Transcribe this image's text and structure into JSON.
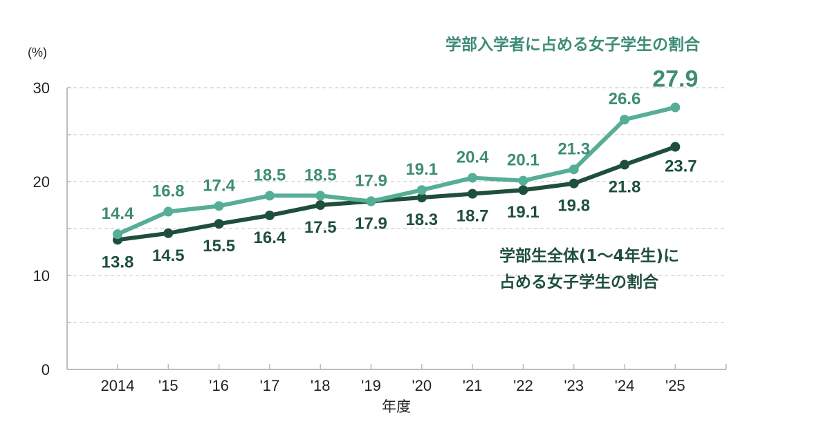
{
  "chart_data": {
    "type": "line",
    "title": "",
    "xlabel": "年度",
    "ylabel": "(%)",
    "ylim": [
      0,
      30
    ],
    "yticks": [
      0,
      10,
      20,
      30
    ],
    "grid": true,
    "categories": [
      "2014",
      "'15",
      "'16",
      "'17",
      "'18",
      "'19",
      "'20",
      "'21",
      "'22",
      "'23",
      "'24",
      "'25"
    ],
    "series": [
      {
        "name": "学部入学者に占める女子学生の割合",
        "color": "#56ae96",
        "label_color": "#3d8c76",
        "values": [
          14.4,
          16.8,
          17.4,
          18.5,
          18.5,
          17.9,
          19.1,
          20.4,
          20.1,
          21.3,
          26.6,
          27.9
        ]
      },
      {
        "name": "学部生全体(1～4年生)に占める女子学生の割合",
        "name_line1": "学部生全体(1～4年生)に",
        "name_line2": "占める女子学生の割合",
        "color": "#1f4f3c",
        "label_color": "#1f4f3c",
        "values": [
          13.8,
          14.5,
          15.5,
          16.4,
          17.5,
          17.9,
          18.3,
          18.7,
          19.1,
          19.8,
          21.8,
          23.7
        ]
      }
    ],
    "legend_position": "inline annotations"
  },
  "axis": {
    "unit": "(%)",
    "y_ticks": [
      "0",
      "10",
      "20",
      "30"
    ],
    "x_title": "年度"
  },
  "labels": {
    "light_series_title": "学部入学者に占める女子学生の割合",
    "dark_series_title_line1": "学部生全体(1～4年生)に",
    "dark_series_title_line2": "占める女子学生の割合"
  }
}
